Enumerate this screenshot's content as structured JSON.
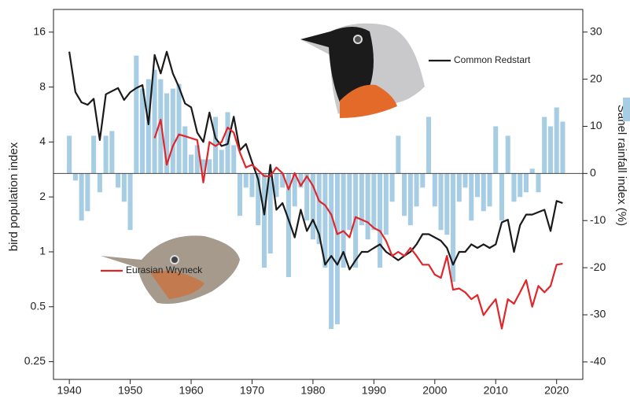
{
  "chart_data": {
    "type": "bar-line",
    "ylabel": "bird population index",
    "y2label": "Sahel rainfall index (%)",
    "x": [
      1940,
      1941,
      1942,
      1943,
      1944,
      1945,
      1946,
      1947,
      1948,
      1949,
      1950,
      1951,
      1952,
      1953,
      1954,
      1955,
      1956,
      1957,
      1958,
      1959,
      1960,
      1961,
      1962,
      1963,
      1964,
      1965,
      1966,
      1967,
      1968,
      1969,
      1970,
      1971,
      1972,
      1973,
      1974,
      1975,
      1976,
      1977,
      1978,
      1979,
      1980,
      1981,
      1982,
      1983,
      1984,
      1985,
      1986,
      1987,
      1988,
      1989,
      1990,
      1991,
      1992,
      1993,
      1994,
      1995,
      1996,
      1997,
      1998,
      1999,
      2000,
      2001,
      2002,
      2003,
      2004,
      2005,
      2006,
      2007,
      2008,
      2009,
      2010,
      2011,
      2012,
      2013,
      2014,
      2015,
      2016,
      2017,
      2018,
      2019,
      2020,
      2021
    ],
    "xlim": [
      1937.4,
      2024.3
    ],
    "xticks": [
      1940,
      1950,
      1960,
      1970,
      1980,
      1990,
      2000,
      2010,
      2020
    ],
    "ylog": true,
    "ylim": [
      0.2,
      21.3
    ],
    "yticks": [
      0.25,
      0.5,
      1,
      2,
      4,
      8,
      16
    ],
    "y2lim": [
      -43.7,
      34.8
    ],
    "y2ticks": [
      -40,
      -30,
      -20,
      -10,
      0,
      10,
      20,
      30
    ],
    "series": [
      {
        "type": "bar",
        "axis": "y2",
        "color": "#a6cde3",
        "values": [
          8,
          -1.5,
          -10,
          -8,
          8,
          -4,
          8,
          9,
          -3,
          -6,
          -12,
          25,
          18,
          20,
          22,
          20,
          17,
          18,
          19,
          10,
          4,
          6,
          3,
          3,
          12,
          5,
          13,
          6,
          -9,
          -3,
          -5,
          -11,
          -20,
          -17,
          -5,
          -3,
          -22,
          -7,
          -3,
          -10,
          -14,
          -15,
          -20,
          -33,
          -32,
          -20,
          -12,
          -20,
          -11,
          -14,
          -12,
          -20,
          -13,
          -6,
          8,
          -9,
          -11,
          -7,
          -3,
          12,
          -7,
          -12,
          -13,
          -23,
          -6,
          -3,
          -10,
          -5,
          -8,
          -7,
          10,
          -10,
          8,
          -6,
          -5,
          -4,
          1,
          -4,
          12,
          10,
          14,
          11
        ]
      },
      {
        "type": "line",
        "name": "Common Redstart",
        "color": "#1a1a1a",
        "values": [
          12.5,
          7.5,
          6.6,
          6.4,
          6.9,
          4.1,
          7.3,
          7.6,
          7.9,
          6.8,
          7.5,
          7.9,
          8.2,
          5.0,
          12,
          9.5,
          12.5,
          9.5,
          8,
          6.5,
          6.2,
          4.5,
          4.0,
          5.8,
          4.2,
          3.8,
          3.9,
          5.5,
          3.6,
          3.9,
          3.1,
          2.5,
          1.6,
          3.0,
          1.7,
          1.85,
          1.5,
          1.2,
          1.7,
          1.3,
          1.5,
          1.25,
          0.85,
          0.95,
          0.85,
          1.0,
          0.8,
          0.9,
          1.0,
          1.0,
          1.05,
          1.1,
          1.0,
          0.95,
          0.9,
          0.95,
          1.0,
          1.1,
          1.25,
          1.25,
          1.2,
          1.15,
          1.05,
          0.85,
          1.0,
          1.0,
          1.1,
          1.05,
          1.1,
          1.05,
          1.1,
          1.45,
          1.5,
          1.0,
          1.4,
          1.6,
          1.6,
          1.65,
          1.7,
          1.3,
          1.9,
          1.85
        ]
      },
      {
        "type": "line",
        "name": "Eurasian Wryneck",
        "color": "#e0262b",
        "values": [
          null,
          null,
          null,
          null,
          null,
          null,
          null,
          null,
          null,
          null,
          null,
          null,
          null,
          null,
          4.2,
          5.3,
          3.0,
          3.8,
          4.4,
          4.3,
          4.2,
          4.1,
          2.4,
          4.0,
          3.8,
          4.0,
          4.8,
          4.5,
          3.5,
          2.9,
          3.0,
          2.8,
          2.6,
          2.6,
          2.9,
          2.7,
          2.2,
          2.7,
          2.3,
          2.6,
          2.3,
          1.9,
          1.8,
          1.6,
          1.25,
          1.3,
          1.2,
          1.55,
          1.5,
          1.45,
          1.35,
          1.3,
          1.15,
          0.95,
          1.0,
          0.95,
          1.05,
          0.95,
          0.85,
          0.85,
          0.75,
          0.72,
          0.95,
          0.62,
          0.63,
          0.6,
          0.55,
          0.58,
          0.45,
          0.5,
          0.55,
          0.38,
          0.55,
          0.52,
          0.6,
          0.7,
          0.5,
          0.65,
          0.6,
          0.65,
          0.85,
          0.86
        ]
      }
    ]
  }
}
